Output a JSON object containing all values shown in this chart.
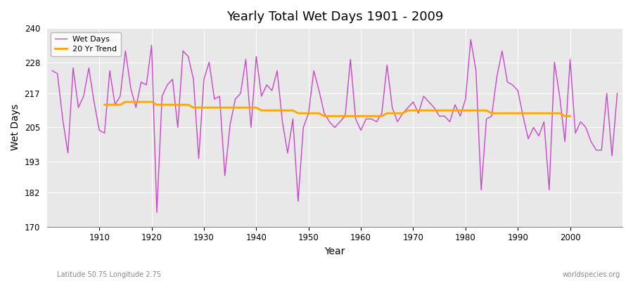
{
  "title": "Yearly Total Wet Days 1901 - 2009",
  "xlabel": "Year",
  "ylabel": "Wet Days",
  "bottom_left_text": "Latitude 50.75 Longitude 2.75",
  "bottom_right_text": "worldspecies.org",
  "wet_days_color": "#cc44cc",
  "trend_color": "#ffa500",
  "plot_bg_color": "#e8e8e8",
  "fig_bg_color": "#ffffff",
  "ylim": [
    170,
    240
  ],
  "yticks": [
    170,
    182,
    193,
    205,
    217,
    228,
    240
  ],
  "xlim": [
    1901,
    2009
  ],
  "xticks": [
    1910,
    1920,
    1930,
    1940,
    1950,
    1960,
    1970,
    1980,
    1990,
    2000
  ],
  "years": [
    1901,
    1902,
    1903,
    1904,
    1905,
    1906,
    1907,
    1908,
    1909,
    1910,
    1911,
    1912,
    1913,
    1914,
    1915,
    1916,
    1917,
    1918,
    1919,
    1920,
    1921,
    1922,
    1923,
    1924,
    1925,
    1926,
    1927,
    1928,
    1929,
    1930,
    1931,
    1932,
    1933,
    1934,
    1935,
    1936,
    1937,
    1938,
    1939,
    1940,
    1941,
    1942,
    1943,
    1944,
    1945,
    1946,
    1947,
    1948,
    1949,
    1950,
    1951,
    1952,
    1953,
    1954,
    1955,
    1956,
    1957,
    1958,
    1959,
    1960,
    1961,
    1962,
    1963,
    1964,
    1965,
    1966,
    1967,
    1968,
    1969,
    1970,
    1971,
    1972,
    1973,
    1974,
    1975,
    1976,
    1977,
    1978,
    1979,
    1980,
    1981,
    1982,
    1983,
    1984,
    1985,
    1986,
    1987,
    1988,
    1989,
    1990,
    1991,
    1992,
    1993,
    1994,
    1995,
    1996,
    1997,
    1998,
    1999,
    2000,
    2001,
    2002,
    2003,
    2004,
    2005,
    2006,
    2007,
    2008,
    2009
  ],
  "wet_days": [
    225,
    224,
    208,
    196,
    226,
    212,
    216,
    226,
    214,
    204,
    203,
    225,
    213,
    216,
    232,
    219,
    212,
    221,
    220,
    234,
    175,
    216,
    220,
    222,
    205,
    232,
    230,
    222,
    194,
    222,
    228,
    215,
    216,
    188,
    206,
    215,
    217,
    229,
    205,
    230,
    216,
    220,
    218,
    225,
    207,
    196,
    208,
    179,
    205,
    210,
    225,
    218,
    210,
    207,
    205,
    207,
    209,
    229,
    208,
    204,
    208,
    208,
    207,
    210,
    227,
    212,
    207,
    210,
    212,
    214,
    210,
    216,
    214,
    212,
    209,
    209,
    207,
    213,
    209,
    215,
    236,
    225,
    183,
    208,
    209,
    223,
    232,
    221,
    220,
    218,
    209,
    201,
    205,
    202,
    207,
    183,
    228,
    216,
    200,
    229,
    203,
    207,
    205,
    200,
    197,
    197,
    217,
    195,
    217
  ],
  "trend": [
    null,
    null,
    null,
    null,
    null,
    null,
    null,
    null,
    null,
    null,
    213,
    213,
    213,
    213,
    214,
    214,
    214,
    214,
    214,
    214,
    213,
    213,
    213,
    213,
    213,
    213,
    213,
    212,
    212,
    212,
    212,
    212,
    212,
    212,
    212,
    212,
    212,
    212,
    212,
    212,
    211,
    211,
    211,
    211,
    211,
    211,
    211,
    210,
    210,
    210,
    210,
    210,
    209,
    209,
    209,
    209,
    209,
    209,
    209,
    209,
    209,
    209,
    209,
    209,
    210,
    210,
    210,
    210,
    211,
    211,
    211,
    211,
    211,
    211,
    211,
    211,
    211,
    211,
    211,
    211,
    211,
    211,
    211,
    211,
    210,
    210,
    210,
    210,
    210,
    210,
    210,
    210,
    210,
    210,
    210,
    210,
    210,
    210,
    209,
    209,
    null,
    null,
    null,
    null,
    null,
    null,
    null,
    null,
    null
  ]
}
